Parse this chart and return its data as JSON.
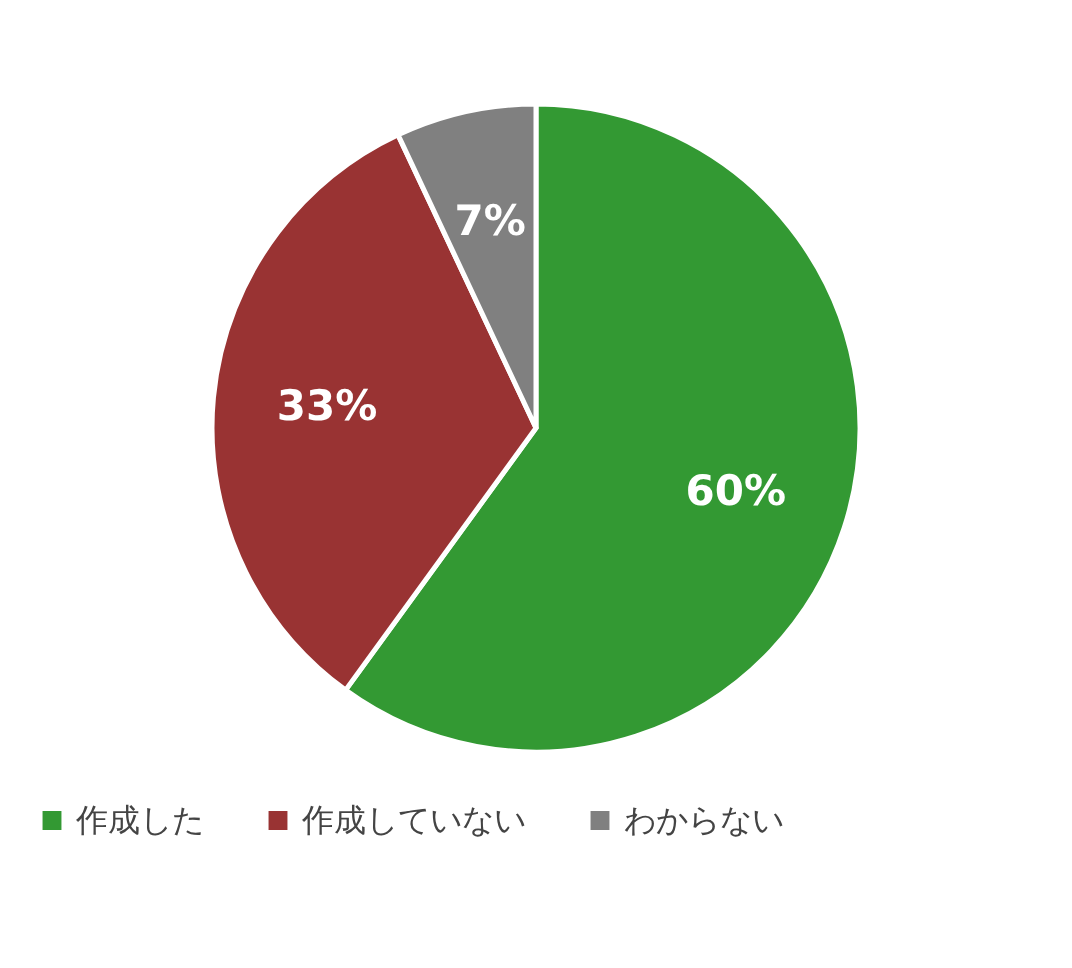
{
  "chart_data": {
    "type": "pie",
    "categories": [
      "作成した",
      "作成していない",
      "わからない"
    ],
    "values": [
      60,
      33,
      7
    ],
    "colors": [
      "#339933",
      "#993333",
      "#808080"
    ],
    "value_labels": [
      "60%",
      "33%",
      "7%"
    ],
    "legend": "bottom"
  }
}
